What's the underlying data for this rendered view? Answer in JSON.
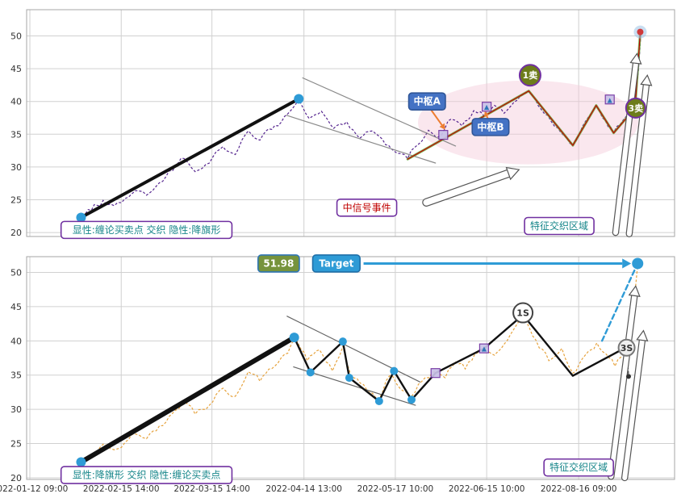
{
  "window": {
    "background": "#ffffff",
    "grid_color": "#d0d0d0",
    "border_color": "#a6a6a6",
    "axis_text_color": "#333333"
  },
  "axes": {
    "y_ticks": [
      20,
      25,
      30,
      35,
      40,
      45,
      50
    ],
    "x_tick_labels": [
      "2022-01-12 09:00",
      "2022-02-15 14:00",
      "2022-03-15 14:00",
      "2022-04-14 13:00",
      "2022-05-17 10:00",
      "2022-06-15 10:00",
      "2022-08-16 09:00"
    ],
    "x_tick_fx": [
      0.005,
      0.146,
      0.286,
      0.428,
      0.569,
      0.71,
      0.852
    ]
  },
  "chart_data": [
    {
      "name": "top-panel",
      "type": "line",
      "title": "",
      "xlabel": "",
      "ylabel": "",
      "ylim": [
        19.4,
        54.0
      ],
      "yticks": [
        20,
        25,
        30,
        35,
        40,
        45,
        50
      ],
      "x_unit": "fraction_of_time_axis",
      "price": {
        "name": "price-line-top",
        "color": "#55258f",
        "points": [
          [
            0.08,
            22.4
          ],
          [
            0.1,
            23.4
          ],
          [
            0.118,
            24.9
          ],
          [
            0.135,
            24.1
          ],
          [
            0.152,
            25.2
          ],
          [
            0.168,
            26.4
          ],
          [
            0.185,
            25.7
          ],
          [
            0.205,
            27.6
          ],
          [
            0.225,
            29.4
          ],
          [
            0.243,
            31.3
          ],
          [
            0.26,
            29.3
          ],
          [
            0.282,
            30.6
          ],
          [
            0.303,
            33.1
          ],
          [
            0.322,
            31.9
          ],
          [
            0.342,
            35.5
          ],
          [
            0.36,
            34.1
          ],
          [
            0.383,
            36.3
          ],
          [
            0.403,
            38.1
          ],
          [
            0.42,
            40.3
          ],
          [
            0.436,
            37.4
          ],
          [
            0.455,
            38.5
          ],
          [
            0.474,
            35.9
          ],
          [
            0.494,
            36.9
          ],
          [
            0.514,
            34.4
          ],
          [
            0.534,
            35.5
          ],
          [
            0.554,
            33.4
          ],
          [
            0.572,
            32.1
          ],
          [
            0.588,
            31.3
          ],
          [
            0.605,
            33.5
          ],
          [
            0.62,
            35.6
          ],
          [
            0.636,
            34.6
          ],
          [
            0.655,
            37.3
          ],
          [
            0.672,
            36.3
          ],
          [
            0.69,
            38.6
          ],
          [
            0.706,
            37.8
          ],
          [
            0.722,
            39.4
          ],
          [
            0.737,
            38.2
          ],
          [
            0.757,
            40.2
          ],
          [
            0.775,
            41.5
          ],
          [
            0.794,
            38.8
          ],
          [
            0.815,
            36.2
          ],
          [
            0.843,
            33.4
          ],
          [
            0.862,
            36.9
          ],
          [
            0.879,
            39.3
          ],
          [
            0.893,
            37.1
          ],
          [
            0.906,
            35.3
          ],
          [
            0.921,
            37.2
          ],
          [
            0.938,
            39.2
          ],
          [
            0.944,
            44.5
          ],
          [
            0.948,
            50.3
          ]
        ]
      },
      "ellipse": {
        "fx": 0.774,
        "v": 36.8,
        "rfx": 0.17,
        "rv": 6.4,
        "fill": "#f3c9da",
        "opacity": 0.45
      },
      "lines": [
        {
          "name": "trend-line",
          "color": "#111111",
          "width": 4,
          "points": [
            [
              0.084,
              22.3
            ],
            [
              0.42,
              40.4
            ]
          ]
        },
        {
          "name": "channel-upper",
          "color": "#8a8a8a",
          "width": 1.2,
          "points": [
            [
              0.426,
              43.6
            ],
            [
              0.662,
              33.2
            ]
          ]
        },
        {
          "name": "channel-lower",
          "color": "#8a8a8a",
          "width": 1.2,
          "points": [
            [
              0.401,
              37.9
            ],
            [
              0.631,
              30.6
            ]
          ]
        },
        {
          "name": "signal-line-green",
          "color": "#70ad47",
          "width": 3,
          "opacity": 0.9,
          "points": [
            [
              0.588,
              31.2
            ],
            [
              0.775,
              41.6
            ],
            [
              0.843,
              33.3
            ],
            [
              0.879,
              39.4
            ],
            [
              0.906,
              35.2
            ],
            [
              0.939,
              39.0
            ],
            [
              0.947,
              50.4
            ]
          ]
        },
        {
          "name": "signal-line-red",
          "color": "#c00000",
          "width": 1.2,
          "points": [
            [
              0.588,
              31.2
            ],
            [
              0.775,
              41.6
            ],
            [
              0.843,
              33.3
            ],
            [
              0.879,
              39.4
            ],
            [
              0.906,
              35.2
            ],
            [
              0.939,
              39.0
            ],
            [
              0.947,
              50.4
            ]
          ]
        }
      ],
      "arrows": [
        {
          "name": "signal-event-arrow",
          "from": [
            0.617,
            24.6
          ],
          "to": [
            0.76,
            29.6
          ],
          "style": "outline",
          "width": 8,
          "head": 14
        },
        {
          "name": "breakout-arrow-1",
          "from": [
            0.909,
            20.0
          ],
          "to": [
            0.942,
            47.3
          ],
          "style": "outline",
          "width": 6,
          "head": 12
        },
        {
          "name": "breakout-arrow-2",
          "from": [
            0.93,
            19.8
          ],
          "to": [
            0.958,
            44.0
          ],
          "style": "outline",
          "width": 6,
          "head": 12
        },
        {
          "name": "hub-a-arrow",
          "from": [
            0.62,
            39.3
          ],
          "to": [
            0.646,
            35.7
          ],
          "color": "#ed7d31",
          "width": 2,
          "head": 7
        },
        {
          "name": "hub-b-arrow",
          "from": [
            0.714,
            36.9
          ],
          "to": [
            0.707,
            38.5
          ],
          "color": "#ed7d31",
          "width": 2,
          "head": 6
        }
      ],
      "squares": [
        {
          "fx": 0.643,
          "v": 34.9
        },
        {
          "fx": 0.71,
          "v": 39.2,
          "glyph": "▲"
        },
        {
          "fx": 0.9,
          "v": 40.3,
          "glyph": "▲"
        }
      ],
      "dots": [
        {
          "fx": 0.084,
          "v": 22.3,
          "r": 6,
          "color": "#2e9bd6"
        },
        {
          "fx": 0.42,
          "v": 40.4,
          "r": 6,
          "color": "#2e9bd6"
        },
        {
          "fx": 0.947,
          "v": 50.6,
          "r": 4,
          "color": "#d03a3a",
          "halo": "#9dc3e6"
        }
      ],
      "badges": [
        {
          "text": "1卖",
          "fx": 0.777,
          "v": 44.0,
          "r": 13,
          "fill": "#6d7c1a",
          "stroke": "#7030a0",
          "color": "#ffffff"
        },
        {
          "text": "3卖",
          "fx": 0.94,
          "v": 39.0,
          "r": 12,
          "fill": "#6d7c1a",
          "stroke": "#7030a0",
          "color": "#ffffff"
        }
      ],
      "solid_boxes": [
        {
          "text": "中枢A",
          "fx": 0.618,
          "v": 40.0,
          "fill": "#4472c4",
          "stroke": "#2f5597",
          "color": "#ffffff"
        },
        {
          "text": "中枢B",
          "fx": 0.716,
          "v": 36.1,
          "fill": "#4472c4",
          "stroke": "#2f5597",
          "color": "#ffffff"
        }
      ],
      "outline_boxes": [
        {
          "text": "中信号事件",
          "fx": 0.525,
          "v": 23.8,
          "color": "#c00000",
          "stroke": "#7030a0"
        },
        {
          "text": "特征交织区域",
          "fx": 0.822,
          "v": 21.0,
          "color": "#17868a",
          "stroke": "#7030a0"
        },
        {
          "text": "显性:缠论买卖点 交织 隐性:降旗形",
          "fx": 0.185,
          "v": 20.4,
          "color": "#17868a",
          "stroke": "#7030a0"
        }
      ]
    },
    {
      "name": "bottom-panel",
      "type": "line",
      "title": "",
      "xlabel": "",
      "ylabel": "",
      "ylim": [
        19.76,
        52.3
      ],
      "yticks": [
        20,
        25,
        30,
        35,
        40,
        45,
        50
      ],
      "x_unit": "fraction_of_time_axis",
      "target_value": "51.98",
      "target_label": "Target",
      "price": {
        "name": "price-line-bottom",
        "color": "#e6a23c",
        "points": [
          [
            0.08,
            22.4
          ],
          [
            0.1,
            23.4
          ],
          [
            0.118,
            24.9
          ],
          [
            0.135,
            24.1
          ],
          [
            0.152,
            25.2
          ],
          [
            0.168,
            26.4
          ],
          [
            0.185,
            25.7
          ],
          [
            0.205,
            27.6
          ],
          [
            0.225,
            29.4
          ],
          [
            0.243,
            31.3
          ],
          [
            0.26,
            29.3
          ],
          [
            0.282,
            30.6
          ],
          [
            0.303,
            33.1
          ],
          [
            0.322,
            31.9
          ],
          [
            0.342,
            35.5
          ],
          [
            0.36,
            34.1
          ],
          [
            0.383,
            36.3
          ],
          [
            0.403,
            38.2
          ],
          [
            0.415,
            40.4
          ],
          [
            0.433,
            37.1
          ],
          [
            0.452,
            38.7
          ],
          [
            0.472,
            35.6
          ],
          [
            0.488,
            39.2
          ],
          [
            0.5,
            35.1
          ],
          [
            0.52,
            33.6
          ],
          [
            0.544,
            31.6
          ],
          [
            0.56,
            34.9
          ],
          [
            0.576,
            33.1
          ],
          [
            0.594,
            31.9
          ],
          [
            0.61,
            34.1
          ],
          [
            0.631,
            35.6
          ],
          [
            0.646,
            34.6
          ],
          [
            0.662,
            36.9
          ],
          [
            0.677,
            35.9
          ],
          [
            0.692,
            38.1
          ],
          [
            0.706,
            39.0
          ],
          [
            0.722,
            37.9
          ],
          [
            0.742,
            40.1
          ],
          [
            0.766,
            43.5
          ],
          [
            0.786,
            40.1
          ],
          [
            0.806,
            37.1
          ],
          [
            0.826,
            38.9
          ],
          [
            0.843,
            35.3
          ],
          [
            0.862,
            37.9
          ],
          [
            0.88,
            39.7
          ],
          [
            0.894,
            38.1
          ],
          [
            0.908,
            36.3
          ],
          [
            0.922,
            38.2
          ],
          [
            0.933,
            41.0
          ],
          [
            0.943,
            51.0
          ]
        ]
      },
      "lines": [
        {
          "name": "trend-line",
          "color": "#111111",
          "width": 6,
          "points": [
            [
              0.084,
              22.3
            ],
            [
              0.413,
              40.5
            ]
          ]
        },
        {
          "name": "channel-upper",
          "color": "#666666",
          "width": 1.2,
          "points": [
            [
              0.402,
              43.6
            ],
            [
              0.607,
              34.0
            ]
          ]
        },
        {
          "name": "channel-lower",
          "color": "#666666",
          "width": 1.2,
          "points": [
            [
              0.412,
              36.2
            ],
            [
              0.6,
              30.6
            ]
          ]
        },
        {
          "name": "zigzag-segments",
          "color": "#111111",
          "width": 2.4,
          "points": [
            [
              0.413,
              40.5
            ],
            [
              0.438,
              35.4
            ],
            [
              0.488,
              39.9
            ],
            [
              0.498,
              34.6
            ],
            [
              0.544,
              31.2
            ],
            [
              0.567,
              35.6
            ],
            [
              0.594,
              31.4
            ],
            [
              0.631,
              35.3
            ],
            [
              0.706,
              38.9
            ],
            [
              0.766,
              43.8
            ],
            [
              0.843,
              34.9
            ],
            [
              0.926,
              39.1
            ]
          ]
        },
        {
          "name": "target-projection",
          "color": "#2e9bd6",
          "width": 2.4,
          "dash": "6 4",
          "points": [
            [
              0.888,
              40.0
            ],
            [
              0.943,
              51.3
            ]
          ]
        },
        {
          "name": "drop-tail",
          "color": "#444444",
          "width": 1.2,
          "dash": "3 3",
          "points": [
            [
              0.926,
              39.1
            ],
            [
              0.929,
              35.1
            ]
          ]
        }
      ],
      "arrows": [
        {
          "name": "breakout-arrow-1",
          "from": [
            0.902,
            20.2
          ],
          "to": [
            0.94,
            48.0
          ],
          "style": "outline",
          "width": 6,
          "head": 12
        },
        {
          "name": "breakout-arrow-2",
          "from": [
            0.923,
            20.0
          ],
          "to": [
            0.952,
            41.5
          ],
          "style": "outline",
          "width": 6,
          "head": 12
        },
        {
          "name": "target-arrow",
          "from": [
            0.52,
            51.3
          ],
          "to": [
            0.933,
            51.3
          ],
          "color": "#2e9bd6",
          "width": 3,
          "head": 11
        }
      ],
      "squares": [
        {
          "fx": 0.631,
          "v": 35.3
        },
        {
          "fx": 0.706,
          "v": 38.9,
          "glyph": "▲"
        }
      ],
      "dots": [
        {
          "fx": 0.084,
          "v": 22.3,
          "r": 6,
          "color": "#2e9bd6"
        },
        {
          "fx": 0.413,
          "v": 40.5,
          "r": 6,
          "color": "#2e9bd6"
        },
        {
          "fx": 0.438,
          "v": 35.4,
          "r": 5,
          "color": "#2e9bd6"
        },
        {
          "fx": 0.488,
          "v": 39.9,
          "r": 5,
          "color": "#2e9bd6"
        },
        {
          "fx": 0.498,
          "v": 34.6,
          "r": 5,
          "color": "#2e9bd6"
        },
        {
          "fx": 0.544,
          "v": 31.2,
          "r": 5,
          "color": "#2e9bd6"
        },
        {
          "fx": 0.567,
          "v": 35.6,
          "r": 5,
          "color": "#2e9bd6"
        },
        {
          "fx": 0.594,
          "v": 31.4,
          "r": 5,
          "color": "#2e9bd6"
        },
        {
          "fx": 0.943,
          "v": 51.3,
          "r": 7,
          "color": "#2e9bd6"
        },
        {
          "fx": 0.929,
          "v": 34.8,
          "r": 3,
          "color": "#333333"
        }
      ],
      "badges": [
        {
          "text": "1S",
          "fx": 0.766,
          "v": 44.1,
          "r": 12,
          "fill": "#ffffff",
          "stroke": "#444444",
          "color": "#333333"
        },
        {
          "text": "3S",
          "fx": 0.926,
          "v": 39.0,
          "r": 10,
          "fill": "#efefef",
          "stroke": "#777777",
          "color": "#333333"
        }
      ],
      "solid_boxes": [
        {
          "text": "51.98",
          "fx": 0.389,
          "v": 51.3,
          "fill": "#76933c",
          "stroke": "#2e75b6",
          "color": "#ffffff"
        },
        {
          "text": "Target",
          "fx": 0.478,
          "v": 51.3,
          "fill": "#2e9bd6",
          "stroke": "#1f6fa8",
          "color": "#ffffff"
        }
      ],
      "outline_boxes": [
        {
          "text": "特征交织区域",
          "fx": 0.852,
          "v": 21.5,
          "color": "#17868a",
          "stroke": "#7030a0"
        },
        {
          "text": "显性:降旗形 交织 隐性:缠论买卖点",
          "fx": 0.185,
          "v": 20.4,
          "color": "#17868a",
          "stroke": "#7030a0"
        }
      ]
    }
  ]
}
